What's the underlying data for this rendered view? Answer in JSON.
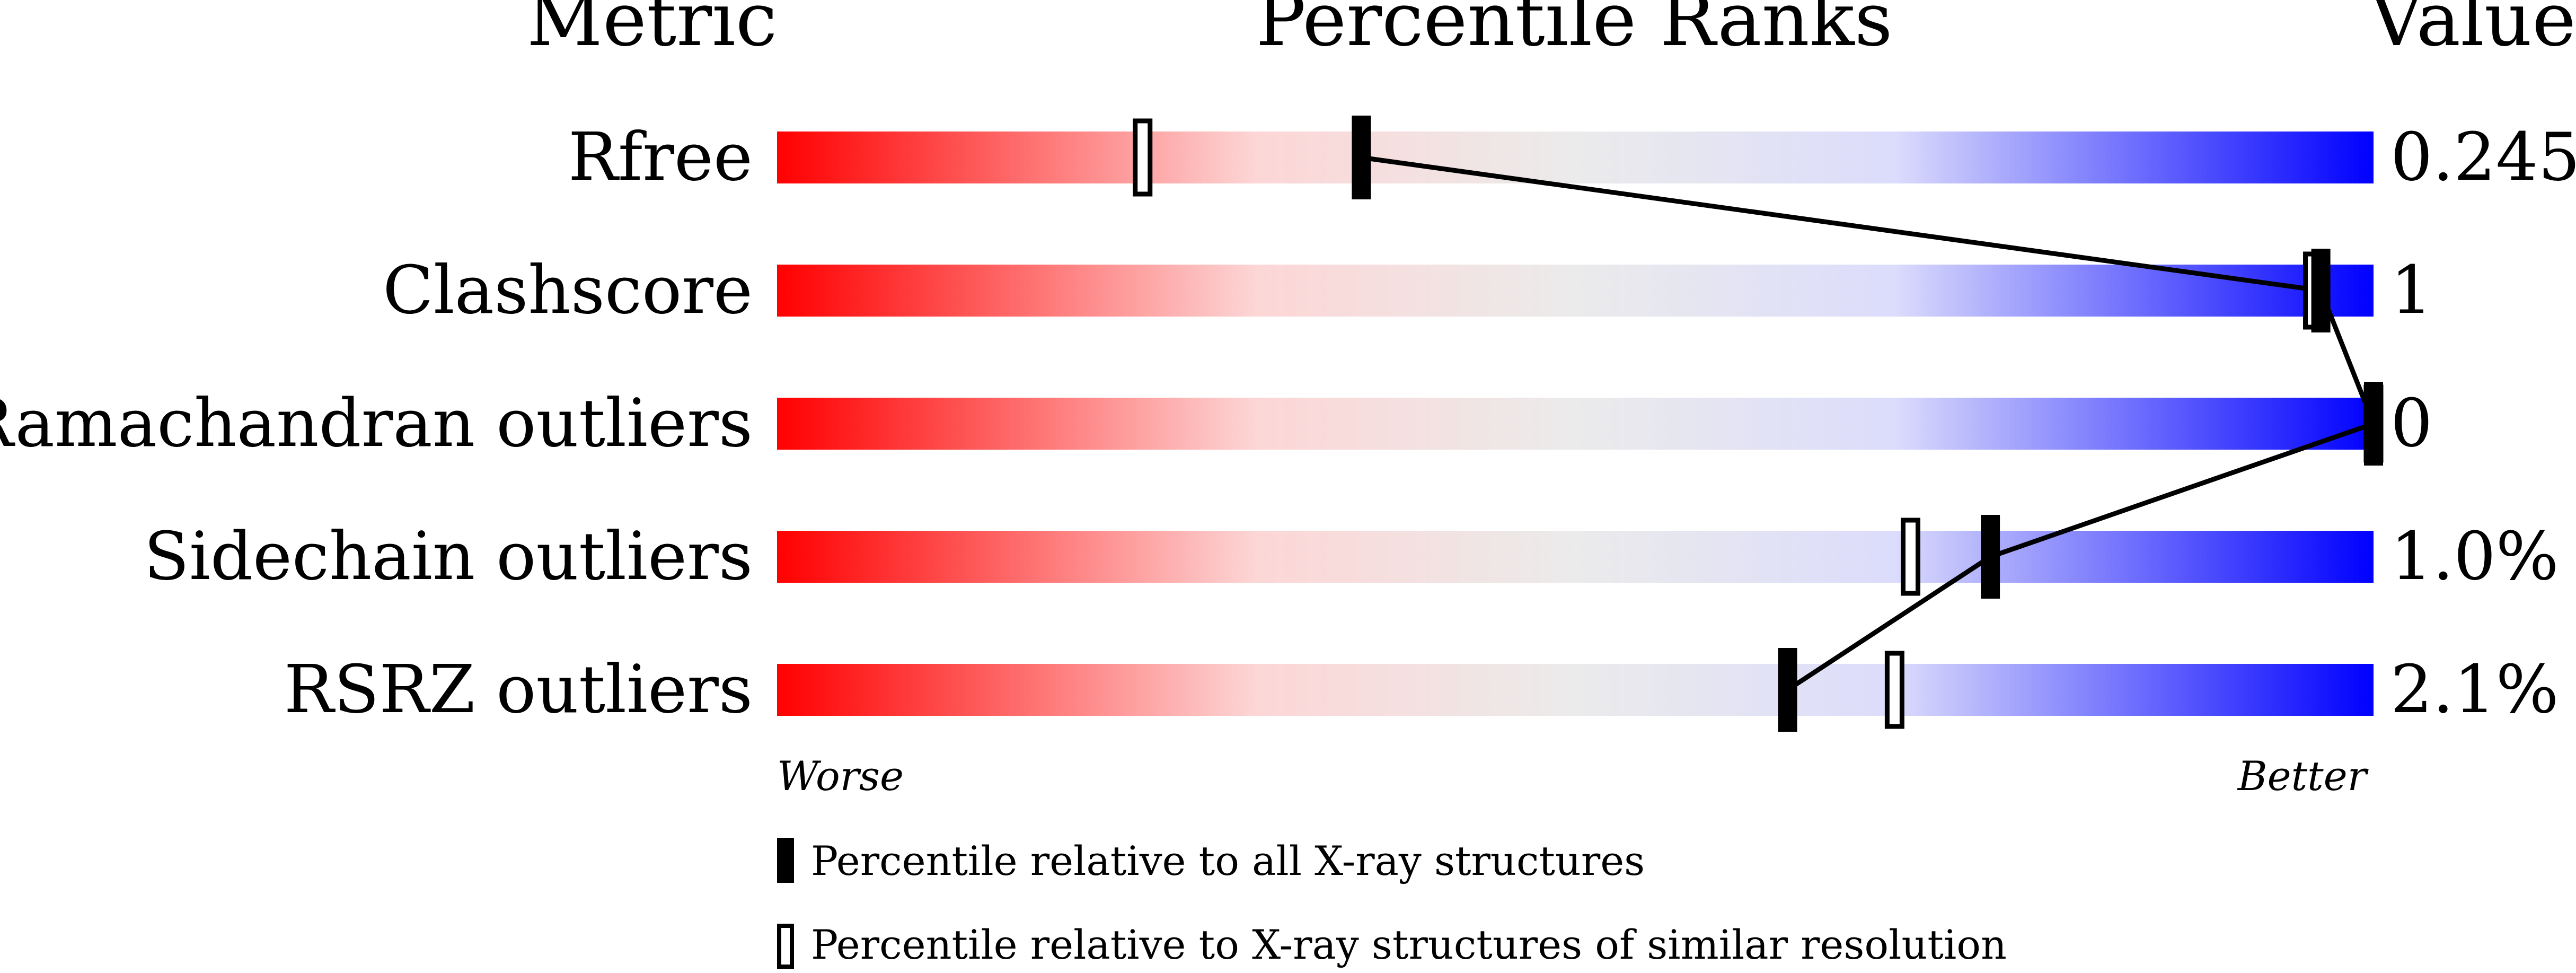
{
  "chart_data": {
    "type": "percentile-slider",
    "headers": {
      "metric": "Metric",
      "ranks": "Percentile Ranks",
      "value": "Value"
    },
    "axis": {
      "left": "Worse",
      "right": "Better",
      "range": [
        0,
        100
      ]
    },
    "colors": {
      "worse": "#ff0000",
      "mid": "#ebebeb",
      "better": "#0000ff"
    },
    "rows": [
      {
        "metric": "Rfree",
        "value": "0.245",
        "percentile_all": 36.6,
        "percentile_similar": 22.9
      },
      {
        "metric": "Clashscore",
        "value": "1",
        "percentile_all": 96.7,
        "percentile_similar": 96.2
      },
      {
        "metric": "Ramachandran outliers",
        "value": "0",
        "percentile_all": 100,
        "percentile_similar": 100
      },
      {
        "metric": "Sidechain outliers",
        "value": "1.0%",
        "percentile_all": 76.0,
        "percentile_similar": 71.0
      },
      {
        "metric": "RSRZ outliers",
        "value": "2.1%",
        "percentile_all": 63.3,
        "percentile_similar": 70.0
      }
    ],
    "legend": {
      "all": "Percentile relative to all X-ray structures",
      "similar": "Percentile relative to X-ray structures of similar resolution"
    }
  }
}
